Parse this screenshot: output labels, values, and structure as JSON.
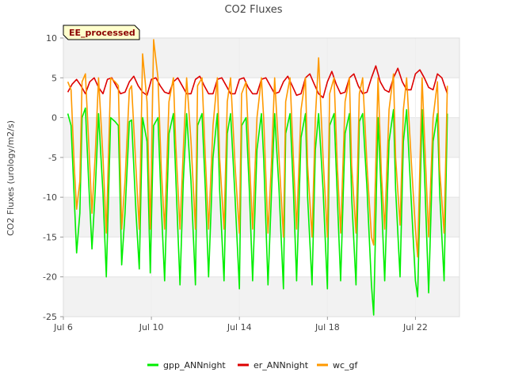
{
  "chart_data": {
    "type": "line",
    "title": "CO2 Fluxes",
    "xlabel": "",
    "ylabel": "CO2 Fluxes (urology/m2/s)",
    "badge": "EE_processed",
    "xlim": [
      6.0,
      24.0
    ],
    "ylim": [
      -25,
      10
    ],
    "yticks": [
      -25,
      -20,
      -15,
      -10,
      -5,
      0,
      5,
      10
    ],
    "xticks": [
      {
        "value": 6,
        "label": "Jul 6"
      },
      {
        "value": 10,
        "label": "Jul 10"
      },
      {
        "value": 14,
        "label": "Jul 14"
      },
      {
        "value": 18,
        "label": "Jul 18"
      },
      {
        "value": 22,
        "label": "Jul 22"
      }
    ],
    "x_unit": "day of July",
    "series": [
      {
        "name": "gpp_ANNnight",
        "color": "#00ee00",
        "x": [
          6.2,
          6.35,
          6.5,
          6.6,
          6.75,
          6.85,
          7.0,
          7.15,
          7.3,
          7.45,
          7.6,
          7.8,
          7.95,
          8.15,
          8.35,
          8.5,
          8.65,
          8.8,
          9.0,
          9.1,
          9.3,
          9.45,
          9.6,
          9.8,
          9.95,
          10.1,
          10.3,
          10.45,
          10.6,
          10.8,
          11.0,
          11.1,
          11.3,
          11.45,
          11.6,
          11.8,
          12.0,
          12.1,
          12.3,
          12.45,
          12.6,
          12.8,
          13.0,
          13.1,
          13.3,
          13.45,
          13.6,
          13.8,
          14.0,
          14.1,
          14.3,
          14.45,
          14.6,
          14.8,
          15.0,
          15.1,
          15.3,
          15.45,
          15.6,
          15.8,
          16.0,
          16.1,
          16.3,
          16.45,
          16.6,
          16.8,
          17.0,
          17.1,
          17.3,
          17.45,
          17.6,
          17.8,
          18.0,
          18.1,
          18.3,
          18.45,
          18.6,
          18.8,
          19.0,
          19.1,
          19.3,
          19.45,
          19.6,
          19.8,
          20.0,
          20.1,
          20.3,
          20.45,
          20.6,
          20.8,
          21.0,
          21.1,
          21.3,
          21.45,
          21.6,
          21.8,
          22.0,
          22.1,
          22.3,
          22.45,
          22.6,
          22.8,
          23.0,
          23.1,
          23.3,
          23.45
        ],
        "y": [
          0.5,
          -1.0,
          -10.5,
          -17.0,
          -12.0,
          0.0,
          1.2,
          -8.0,
          -16.5,
          -9.0,
          0.5,
          -9.5,
          -20.0,
          0.0,
          -0.5,
          -1.0,
          -18.5,
          -12.0,
          -0.5,
          -0.3,
          -12.0,
          -19.0,
          0.0,
          -3.0,
          -19.5,
          -1.0,
          0.0,
          -11.0,
          -20.5,
          -2.0,
          0.5,
          -7.0,
          -21.0,
          -8.0,
          0.5,
          -8.0,
          -21.0,
          -1.0,
          0.5,
          -9.0,
          -20.0,
          -5.0,
          0.5,
          -9.0,
          -20.5,
          -2.0,
          0.5,
          -10.0,
          -21.5,
          -1.0,
          0.0,
          -9.0,
          -20.5,
          -4.0,
          0.5,
          -5.0,
          -21.0,
          -10.0,
          0.5,
          -9.0,
          -21.5,
          -2.0,
          0.5,
          -9.0,
          -20.5,
          -2.5,
          0.5,
          -10.0,
          -21.0,
          -4.0,
          0.5,
          -9.0,
          -21.5,
          -1.0,
          0.5,
          -10.0,
          -20.5,
          -2.0,
          0.5,
          -10.0,
          -21.0,
          -0.5,
          0.5,
          -9.0,
          -21.0,
          -24.8,
          0.0,
          -10.0,
          -20.5,
          -3.0,
          1.0,
          -9.0,
          -20.0,
          -3.0,
          1.0,
          -10.0,
          -20.5,
          -22.5,
          1.0,
          -10.0,
          -22.0,
          -3.0,
          0.5,
          -9.5,
          -20.5,
          0.5
        ]
      },
      {
        "name": "er_ANNnight",
        "color": "#dd0000",
        "x": [
          6.2,
          6.4,
          6.6,
          6.8,
          7.0,
          7.2,
          7.4,
          7.6,
          7.8,
          8.0,
          8.2,
          8.4,
          8.6,
          8.8,
          9.0,
          9.2,
          9.4,
          9.6,
          9.8,
          10.0,
          10.2,
          10.4,
          10.6,
          10.8,
          11.0,
          11.2,
          11.4,
          11.6,
          11.8,
          12.0,
          12.2,
          12.4,
          12.6,
          12.8,
          13.0,
          13.2,
          13.4,
          13.6,
          13.8,
          14.0,
          14.2,
          14.4,
          14.6,
          14.8,
          15.0,
          15.2,
          15.4,
          15.6,
          15.8,
          16.0,
          16.2,
          16.4,
          16.6,
          16.8,
          17.0,
          17.2,
          17.4,
          17.6,
          17.8,
          18.0,
          18.2,
          18.4,
          18.6,
          18.8,
          19.0,
          19.2,
          19.4,
          19.6,
          19.8,
          20.0,
          20.2,
          20.4,
          20.6,
          20.8,
          21.0,
          21.2,
          21.4,
          21.6,
          21.8,
          22.0,
          22.2,
          22.4,
          22.6,
          22.8,
          23.0,
          23.2,
          23.45
        ],
        "y": [
          3.2,
          4.2,
          4.8,
          4.0,
          3.0,
          4.5,
          5.0,
          3.8,
          3.0,
          4.8,
          5.0,
          4.0,
          3.0,
          3.2,
          4.5,
          5.2,
          4.0,
          3.2,
          2.8,
          4.8,
          5.0,
          4.0,
          3.2,
          3.0,
          4.5,
          5.0,
          4.0,
          3.0,
          3.0,
          4.8,
          5.2,
          4.0,
          3.0,
          3.0,
          4.8,
          5.0,
          4.0,
          3.0,
          3.0,
          4.8,
          5.0,
          3.8,
          3.0,
          3.0,
          4.8,
          5.0,
          4.0,
          3.0,
          3.2,
          4.5,
          5.2,
          4.0,
          2.8,
          3.0,
          5.0,
          5.5,
          4.2,
          3.0,
          2.5,
          4.5,
          5.8,
          4.2,
          3.0,
          3.2,
          5.0,
          5.5,
          4.0,
          3.0,
          3.2,
          5.0,
          6.5,
          4.5,
          3.5,
          3.2,
          5.0,
          6.2,
          4.5,
          3.5,
          3.5,
          5.5,
          6.0,
          5.0,
          3.8,
          3.5,
          5.5,
          5.0,
          3.0
        ]
      },
      {
        "name": "wc_gf",
        "color": "#ff9900",
        "x": [
          6.2,
          6.35,
          6.5,
          6.6,
          6.75,
          6.85,
          7.0,
          7.15,
          7.3,
          7.45,
          7.6,
          7.8,
          7.95,
          8.15,
          8.35,
          8.5,
          8.65,
          8.8,
          9.0,
          9.1,
          9.3,
          9.45,
          9.6,
          9.8,
          9.95,
          10.1,
          10.3,
          10.45,
          10.6,
          10.8,
          11.0,
          11.1,
          11.3,
          11.45,
          11.6,
          11.8,
          12.0,
          12.1,
          12.3,
          12.45,
          12.6,
          12.8,
          13.0,
          13.1,
          13.3,
          13.45,
          13.6,
          13.8,
          14.0,
          14.1,
          14.3,
          14.45,
          14.6,
          14.8,
          15.0,
          15.1,
          15.3,
          15.45,
          15.6,
          15.8,
          16.0,
          16.1,
          16.3,
          16.45,
          16.6,
          16.8,
          17.0,
          17.1,
          17.3,
          17.45,
          17.6,
          17.8,
          18.0,
          18.1,
          18.3,
          18.45,
          18.6,
          18.8,
          19.0,
          19.1,
          19.3,
          19.45,
          19.6,
          19.8,
          20.0,
          20.1,
          20.3,
          20.45,
          20.6,
          20.8,
          21.0,
          21.1,
          21.3,
          21.45,
          21.6,
          21.8,
          22.0,
          22.1,
          22.3,
          22.45,
          22.6,
          22.8,
          23.0,
          23.1,
          23.3,
          23.45
        ],
        "y": [
          4.5,
          3.5,
          -6.5,
          -11.5,
          -8.0,
          4.5,
          5.5,
          -3.0,
          -12.0,
          -4.5,
          5.0,
          -5.0,
          -14.5,
          5.0,
          4.5,
          4.0,
          -14.0,
          -8.0,
          3.5,
          4.0,
          -6.5,
          -14.0,
          8.0,
          2.0,
          -14.0,
          9.8,
          5.0,
          -6.5,
          -14.0,
          2.0,
          5.0,
          -3.0,
          -14.0,
          -4.0,
          5.0,
          -3.0,
          -14.0,
          4.0,
          5.0,
          -5.0,
          -14.0,
          -1.0,
          5.0,
          -5.0,
          -14.0,
          2.0,
          5.0,
          -6.0,
          -14.5,
          3.0,
          4.5,
          -5.0,
          -14.0,
          0.0,
          5.0,
          0.0,
          -14.5,
          -6.0,
          5.0,
          -5.0,
          -15.0,
          2.0,
          5.0,
          -5.0,
          -14.0,
          1.0,
          5.0,
          -6.0,
          -15.0,
          0.0,
          7.5,
          -5.0,
          -15.0,
          3.0,
          5.0,
          -6.0,
          -14.5,
          2.0,
          5.0,
          -6.0,
          -14.5,
          3.0,
          5.0,
          -6.0,
          -15.0,
          -16.0,
          5.0,
          -7.0,
          -14.0,
          1.0,
          5.5,
          -5.0,
          -13.5,
          1.0,
          5.0,
          -5.0,
          -14.0,
          -17.5,
          5.0,
          -5.0,
          -15.0,
          0.0,
          4.5,
          -6.5,
          -14.5,
          4.0
        ]
      }
    ]
  }
}
